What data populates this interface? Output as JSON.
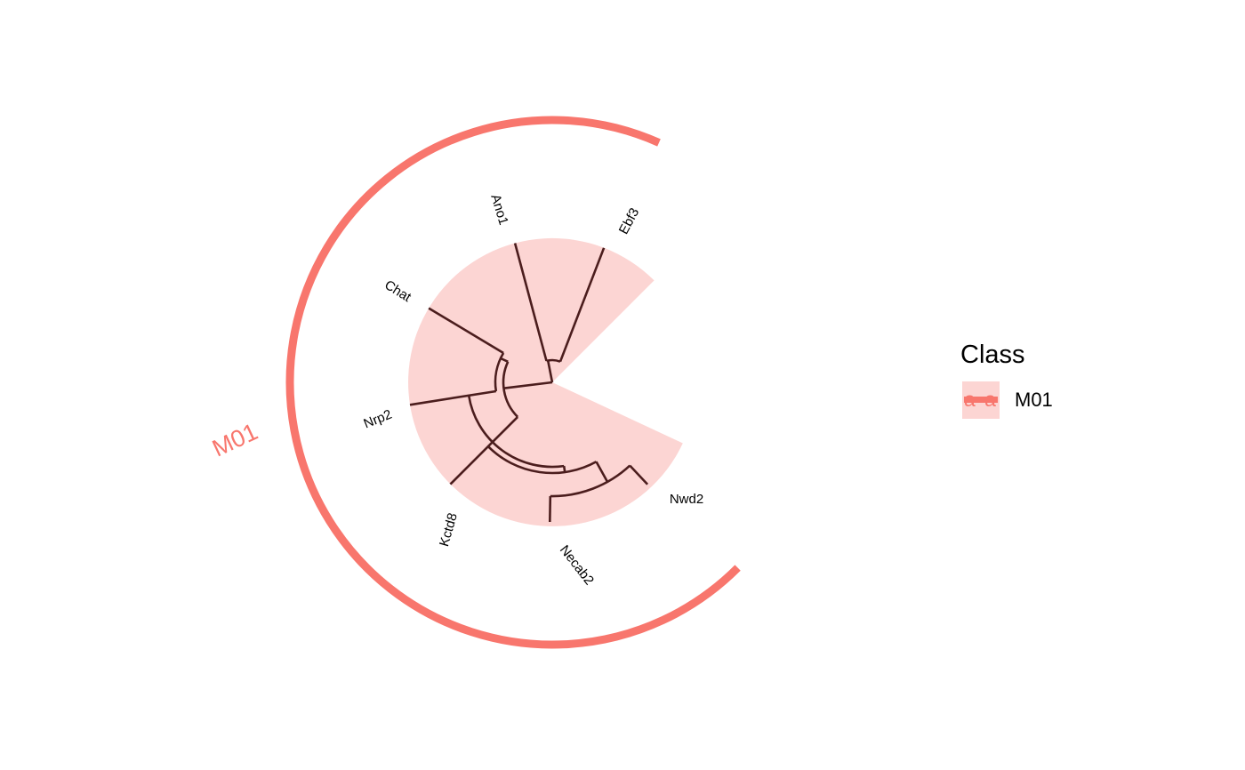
{
  "tree": {
    "tips": [
      "Ebf3",
      "Ano1",
      "Chat",
      "Nrp2",
      "Kctd8",
      "Necab2",
      "Nwd2"
    ],
    "clade_label": "M01",
    "colors": {
      "clade_arc": "#F8766D",
      "clade_fill": "#FCD5D3",
      "branch": "#4B1D1D"
    }
  },
  "legend": {
    "title": "Class",
    "items": [
      {
        "label": "M01",
        "glyph": "a a",
        "color": "#F8766D",
        "fill": "#FCD5D3"
      }
    ]
  }
}
